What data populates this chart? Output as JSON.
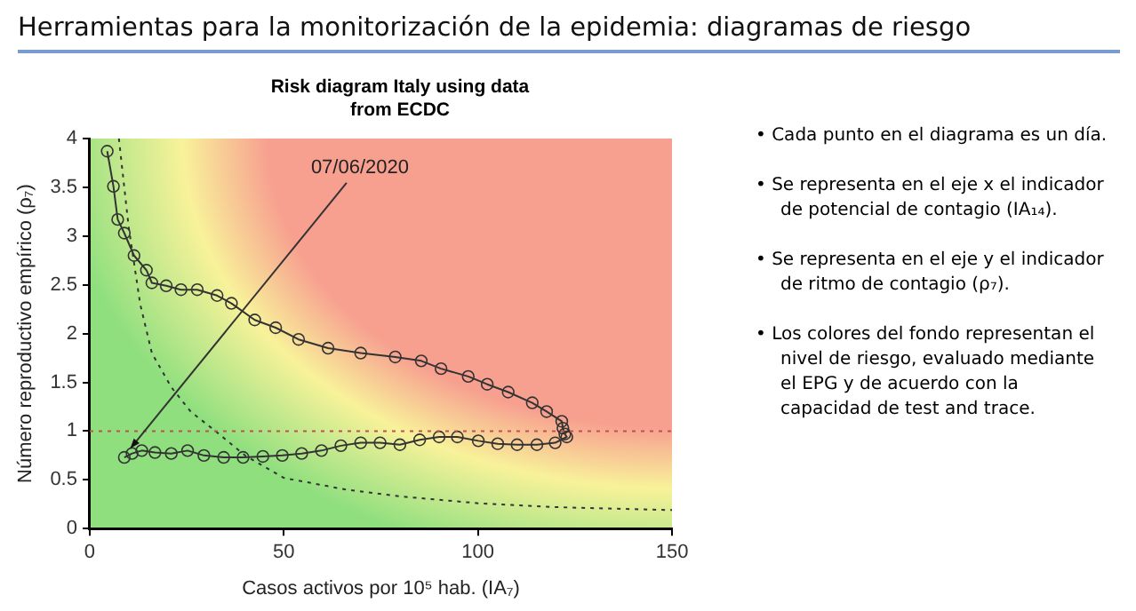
{
  "chart_data": {
    "type": "line",
    "title": "Herramientas para la monitorización de la epidemia: diagramas de riesgo",
    "subtitle": "Risk diagram Italy using data from ECDC",
    "xlabel": "Casos activos por 10⁵ hab. (IA₇)",
    "ylabel": "Número reproductivo empírico (ρ₇)",
    "xlim": [
      0,
      150
    ],
    "xticks": [
      0,
      50,
      100,
      150
    ],
    "ylim": [
      0,
      4
    ],
    "yticks": [
      0,
      0.5,
      1,
      1.5,
      2,
      2.5,
      3,
      3.5,
      4
    ],
    "grid": false,
    "legend": false,
    "marker": "circle",
    "series": [
      {
        "color": "#333333",
        "line_style": "solid",
        "x": [
          4.5,
          6.1,
          7.2,
          8.9,
          11.4,
          14.6,
          16,
          19.7,
          23.5,
          27.7,
          32.8,
          36.5,
          42.5,
          47.9,
          53.8,
          61.4,
          69.8,
          78.7,
          85.4,
          90.5,
          97.5,
          102.4,
          107.8,
          114,
          117.7,
          121.6,
          121.9,
          122.4,
          122.9,
          119.9,
          115.2,
          110.1,
          105.1,
          100.1,
          94.7,
          90,
          85,
          79.9,
          74.8,
          69.8,
          64.7,
          59.7,
          54.6,
          49.6,
          44.6,
          39.5,
          34.5,
          29.4,
          25.2,
          21,
          16.8,
          13.4,
          10.9,
          8.9
        ],
        "values": [
          3.87,
          3.51,
          3.17,
          3.03,
          2.8,
          2.65,
          2.52,
          2.49,
          2.45,
          2.45,
          2.39,
          2.31,
          2.14,
          2.06,
          1.94,
          1.85,
          1.8,
          1.76,
          1.72,
          1.64,
          1.56,
          1.48,
          1.4,
          1.29,
          1.2,
          1.1,
          1.03,
          0.97,
          0.94,
          0.88,
          0.86,
          0.86,
          0.87,
          0.9,
          0.94,
          0.94,
          0.91,
          0.86,
          0.88,
          0.88,
          0.85,
          0.8,
          0.77,
          0.75,
          0.74,
          0.73,
          0.73,
          0.75,
          0.8,
          0.77,
          0.78,
          0.8,
          0.77,
          0.73
        ]
      },
      {
        "color": "#333333",
        "marker": "none",
        "line_style": "dotted",
        "x": [
          7.5,
          10,
          13,
          16,
          21,
          26,
          33,
          40,
          50,
          66,
          80,
          100,
          120,
          150
        ],
        "values": [
          4,
          3.1,
          2.3,
          1.8,
          1.45,
          1.2,
          0.98,
          0.75,
          0.52,
          0.4,
          0.33,
          0.26,
          0.22,
          0.19
        ]
      }
    ],
    "ref_lines": [
      {
        "axis": "y",
        "value": 1,
        "color": "#c05050",
        "line_style": "dotted"
      }
    ],
    "annotations": [
      {
        "text": "07/06/2020",
        "x": 9,
        "y": 0.75
      },
      "• Cada punto en el diagrama es un día.",
      "• Se representa en el eje x el indicador de potencial de contagio (IA₁₄).",
      "• Se representa en el eje y el indicador de ritmo de contagio (ρ₇).",
      "• Los colores del fondo representan el nivel de riesgo, evaluado mediante el EPG y de acuerdo con la capacidad de test and trace."
    ]
  }
}
